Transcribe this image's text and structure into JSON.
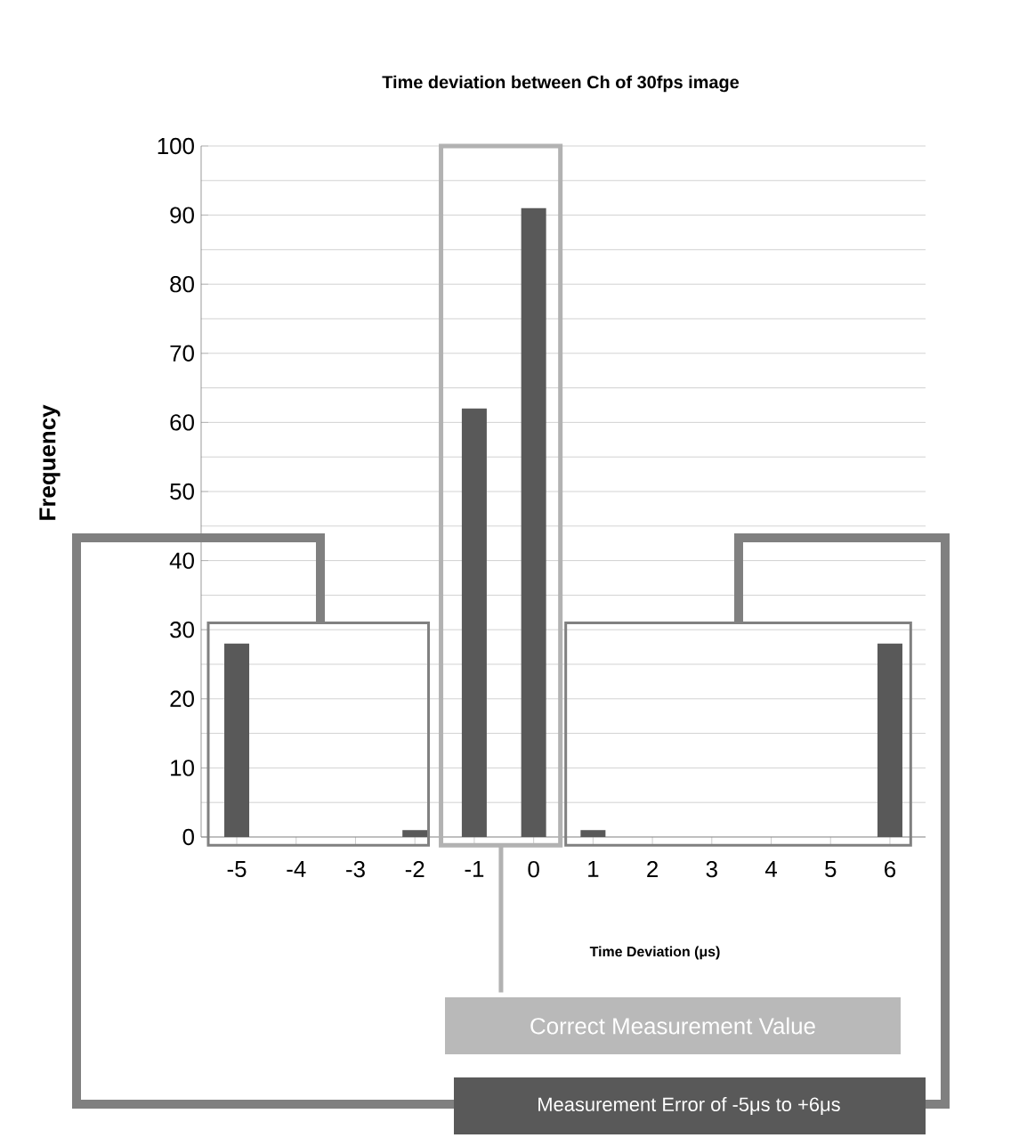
{
  "chart_data": {
    "type": "bar",
    "title": "Time deviation between Ch of 30fps image",
    "xlabel": "Time Deviation (μs)",
    "ylabel": "Frequency",
    "categories": [
      "-5",
      "-4",
      "-3",
      "-2",
      "-1",
      "0",
      "1",
      "2",
      "3",
      "4",
      "5",
      "6"
    ],
    "values": [
      28,
      0,
      0,
      1,
      62,
      91,
      1,
      0,
      0,
      0,
      0,
      28
    ],
    "color": "#595959",
    "ylim": [
      0,
      100
    ],
    "yticks": [
      0,
      10,
      20,
      30,
      40,
      50,
      60,
      70,
      80,
      90,
      100
    ],
    "grid": "y",
    "annotations": [
      "Correct Measurement Value",
      "Measurement Error of -5μs to +6μs"
    ]
  }
}
